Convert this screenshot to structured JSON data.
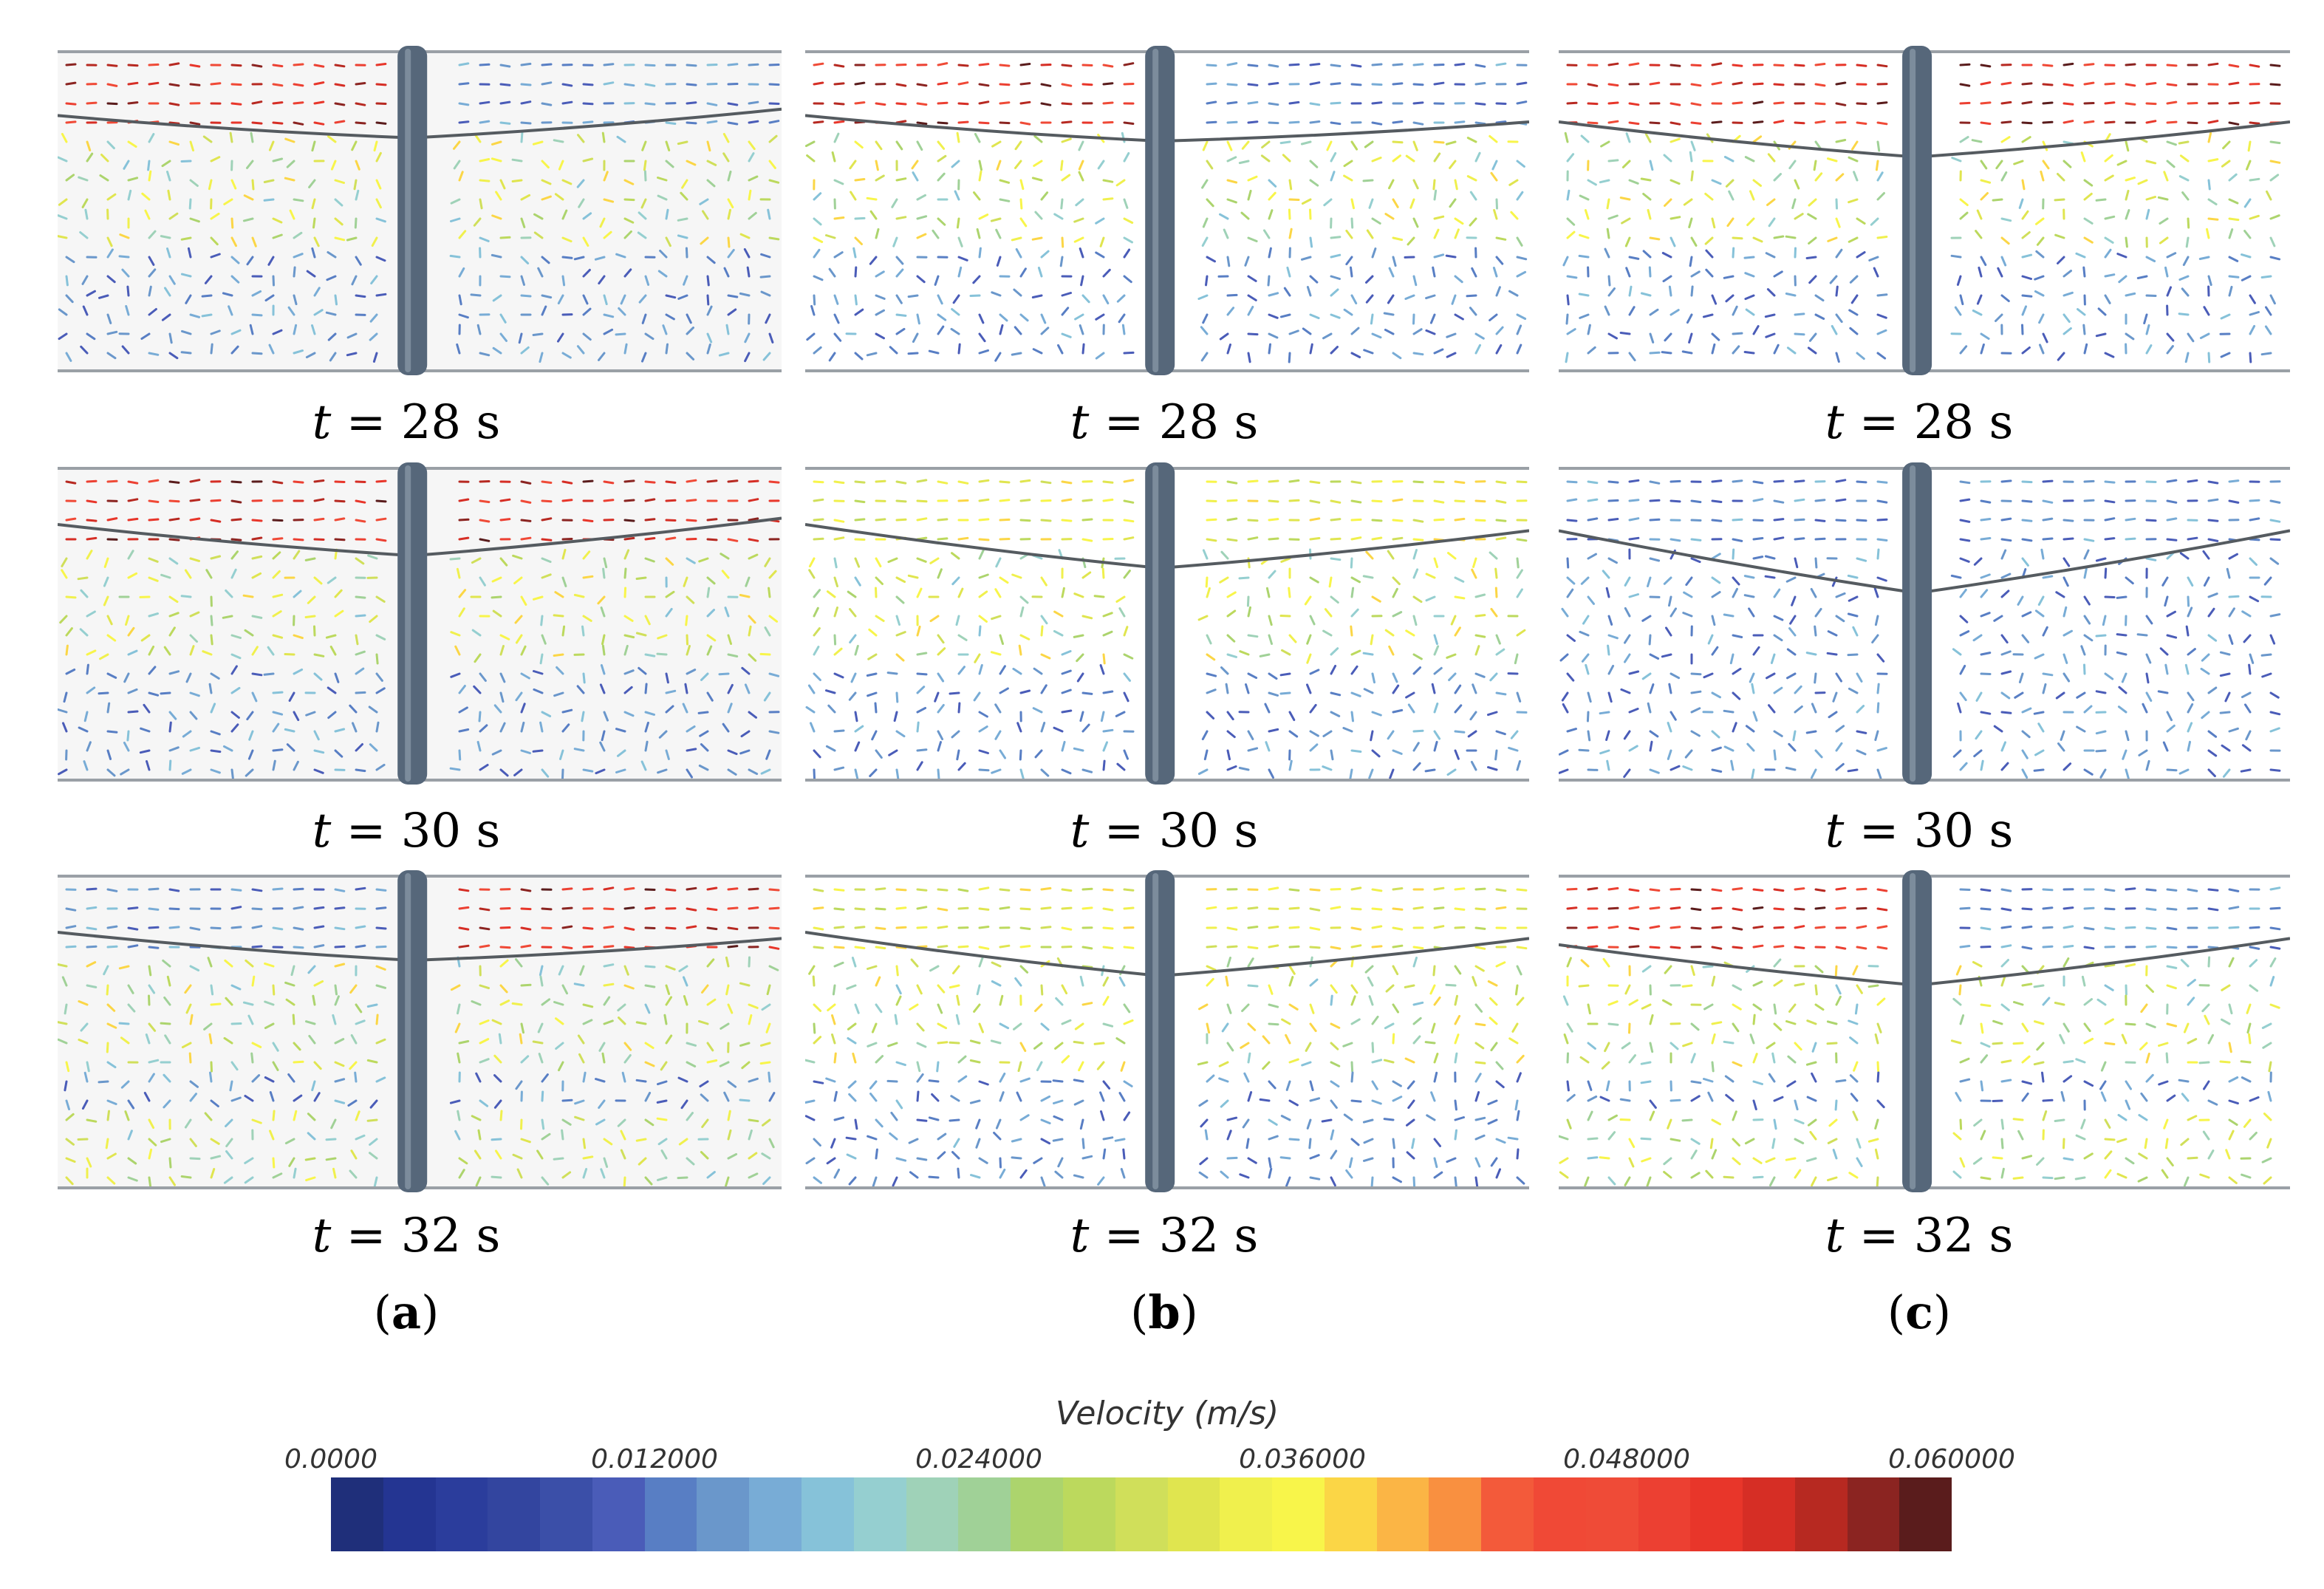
{
  "panels": [
    {
      "column": "a",
      "time_label": "t",
      "time_rest": " = 28 s"
    },
    {
      "column": "b",
      "time_label": "t",
      "time_rest": " = 28 s"
    },
    {
      "column": "c",
      "time_label": "t",
      "time_rest": " = 28 s"
    },
    {
      "column": "a",
      "time_label": "t",
      "time_rest": " = 30 s"
    },
    {
      "column": "b",
      "time_label": "t",
      "time_rest": " = 30 s"
    },
    {
      "column": "c",
      "time_label": "t",
      "time_rest": " = 30 s"
    },
    {
      "column": "a",
      "time_label": "t",
      "time_rest": " = 32 s"
    },
    {
      "column": "b",
      "time_label": "t",
      "time_rest": " = 32 s"
    },
    {
      "column": "c",
      "time_label": "t",
      "time_rest": " = 32 s"
    }
  ],
  "subfigures": [
    {
      "open": "(",
      "letter": "a",
      "close": ")"
    },
    {
      "open": "(",
      "letter": "b",
      "close": ")"
    },
    {
      "open": "(",
      "letter": "c",
      "close": ")"
    }
  ],
  "colorbar": {
    "title": "Velocity (m/s)",
    "ticks": [
      "0.0000",
      "0.012000",
      "0.024000",
      "0.036000",
      "0.048000",
      "0.060000"
    ],
    "colors": [
      "#1f2f7a",
      "#243592",
      "#2b3d9c",
      "#33459f",
      "#3b4fa8",
      "#4a5cb8",
      "#587ec4",
      "#6a97cb",
      "#78acd6",
      "#86c2d9",
      "#95cfd0",
      "#9fd2b8",
      "#a0d197",
      "#acd46d",
      "#bcd95d",
      "#d0df5a",
      "#e0e54f",
      "#f0f04d",
      "#f8f54a",
      "#fbd646",
      "#fbb545",
      "#f99040",
      "#f35a3a",
      "#f04936",
      "#ef4b37",
      "#ec4032",
      "#e8362a",
      "#d62e25",
      "#b72921",
      "#8b2421",
      "#5a1c1c"
    ]
  },
  "colors": {
    "pile": "#56677a",
    "surface_line": "#555b60",
    "floor_line": "#9aa0a6"
  }
}
